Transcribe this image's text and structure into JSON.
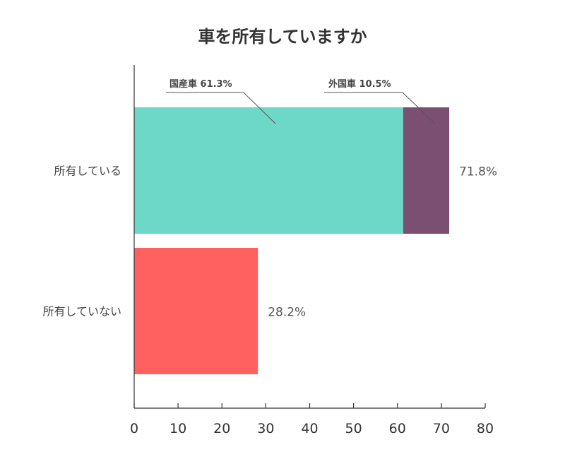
{
  "chart_data": {
    "type": "bar",
    "orientation": "horizontal",
    "stacked": true,
    "title": "車を所有していますか",
    "categories": [
      "所有している",
      "所有していない"
    ],
    "bars": [
      {
        "category": "所有している",
        "total_label": "71.8%",
        "segments": [
          {
            "name": "国産車",
            "value": 61.3,
            "label": "国産車 61.3%",
            "color": "#6DD8C8"
          },
          {
            "name": "外国車",
            "value": 10.5,
            "label": "外国車 10.5%",
            "color": "#7A4F72"
          }
        ]
      },
      {
        "category": "所有していない",
        "total_label": "28.2%",
        "segments": [
          {
            "name": "",
            "value": 28.2,
            "label": "",
            "color": "#FF6161"
          }
        ]
      }
    ],
    "xlim": [
      0,
      80
    ],
    "xticks": [
      "0",
      "10",
      "20",
      "30",
      "40",
      "50",
      "60",
      "70",
      "80"
    ],
    "grid": false,
    "legend": "callouts"
  }
}
